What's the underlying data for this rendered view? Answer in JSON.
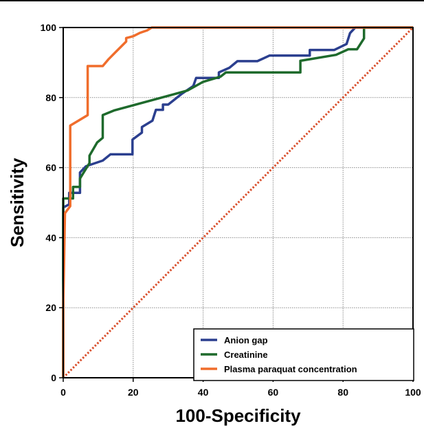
{
  "chart_data": {
    "type": "line",
    "xlabel": "100-Specificity",
    "ylabel": "Sensitivity",
    "xlim": [
      0,
      100
    ],
    "ylim": [
      0,
      100
    ],
    "x_ticks": [
      0,
      20,
      40,
      60,
      80,
      100
    ],
    "y_ticks": [
      0,
      20,
      40,
      60,
      80,
      100
    ],
    "grid": true,
    "legend_position": "bottom-right",
    "series": [
      {
        "name": "Anion gap",
        "color": "#2b3f8f",
        "points": [
          [
            0,
            0
          ],
          [
            0,
            48.6
          ],
          [
            1.7,
            49.5
          ],
          [
            1.7,
            52.8
          ],
          [
            4.8,
            52.8
          ],
          [
            4.8,
            58.6
          ],
          [
            6.5,
            60.4
          ],
          [
            11.3,
            62
          ],
          [
            13.5,
            63.8
          ],
          [
            19.8,
            63.8
          ],
          [
            19.8,
            68
          ],
          [
            22.5,
            70
          ],
          [
            22.5,
            71.6
          ],
          [
            25.5,
            73.4
          ],
          [
            26.5,
            76.5
          ],
          [
            28.5,
            76.5
          ],
          [
            28.5,
            78
          ],
          [
            30,
            78
          ],
          [
            33.8,
            81
          ],
          [
            37.2,
            83.3
          ],
          [
            38,
            85.6
          ],
          [
            44.5,
            85.6
          ],
          [
            44.5,
            87.2
          ],
          [
            47.5,
            88.5
          ],
          [
            49.8,
            90.4
          ],
          [
            55.5,
            90.4
          ],
          [
            59,
            92
          ],
          [
            70.5,
            92
          ],
          [
            70.5,
            93.6
          ],
          [
            77.5,
            93.6
          ],
          [
            81,
            95.3
          ],
          [
            82,
            98.4
          ],
          [
            83.5,
            100
          ],
          [
            100,
            100
          ]
        ]
      },
      {
        "name": "Creatinine",
        "color": "#1e6a2c",
        "points": [
          [
            0,
            0
          ],
          [
            0,
            51.2
          ],
          [
            2.8,
            51.2
          ],
          [
            2.8,
            54.5
          ],
          [
            4.8,
            54.5
          ],
          [
            4.8,
            56.9
          ],
          [
            7.5,
            61.3
          ],
          [
            7.5,
            63.4
          ],
          [
            9.7,
            67.2
          ],
          [
            11.3,
            68.5
          ],
          [
            11.3,
            75
          ],
          [
            14.5,
            76.3
          ],
          [
            35.5,
            82
          ],
          [
            40,
            84.5
          ],
          [
            45,
            86
          ],
          [
            46.5,
            87.2
          ],
          [
            67.8,
            87.2
          ],
          [
            67.8,
            90.5
          ],
          [
            78,
            92.2
          ],
          [
            81.5,
            93.8
          ],
          [
            84,
            93.8
          ],
          [
            86,
            96.9
          ],
          [
            86,
            100
          ],
          [
            100,
            100
          ]
        ]
      },
      {
        "name": "Plasma paraquat concentration",
        "color": "#f06d2c",
        "points": [
          [
            0,
            0
          ],
          [
            0,
            20
          ],
          [
            0.5,
            47
          ],
          [
            2,
            49
          ],
          [
            2,
            72
          ],
          [
            7,
            75
          ],
          [
            7,
            89
          ],
          [
            11.3,
            89
          ],
          [
            13,
            91
          ],
          [
            15,
            93
          ],
          [
            18,
            96
          ],
          [
            18,
            97
          ],
          [
            20,
            97.5
          ],
          [
            22,
            98.5
          ],
          [
            24,
            99.2
          ],
          [
            25.3,
            100
          ],
          [
            100,
            100
          ]
        ]
      },
      {
        "name": "",
        "style": "dotted-reference",
        "color": "#d94e2b",
        "points": [
          [
            0,
            0
          ],
          [
            100,
            100
          ]
        ]
      }
    ]
  }
}
